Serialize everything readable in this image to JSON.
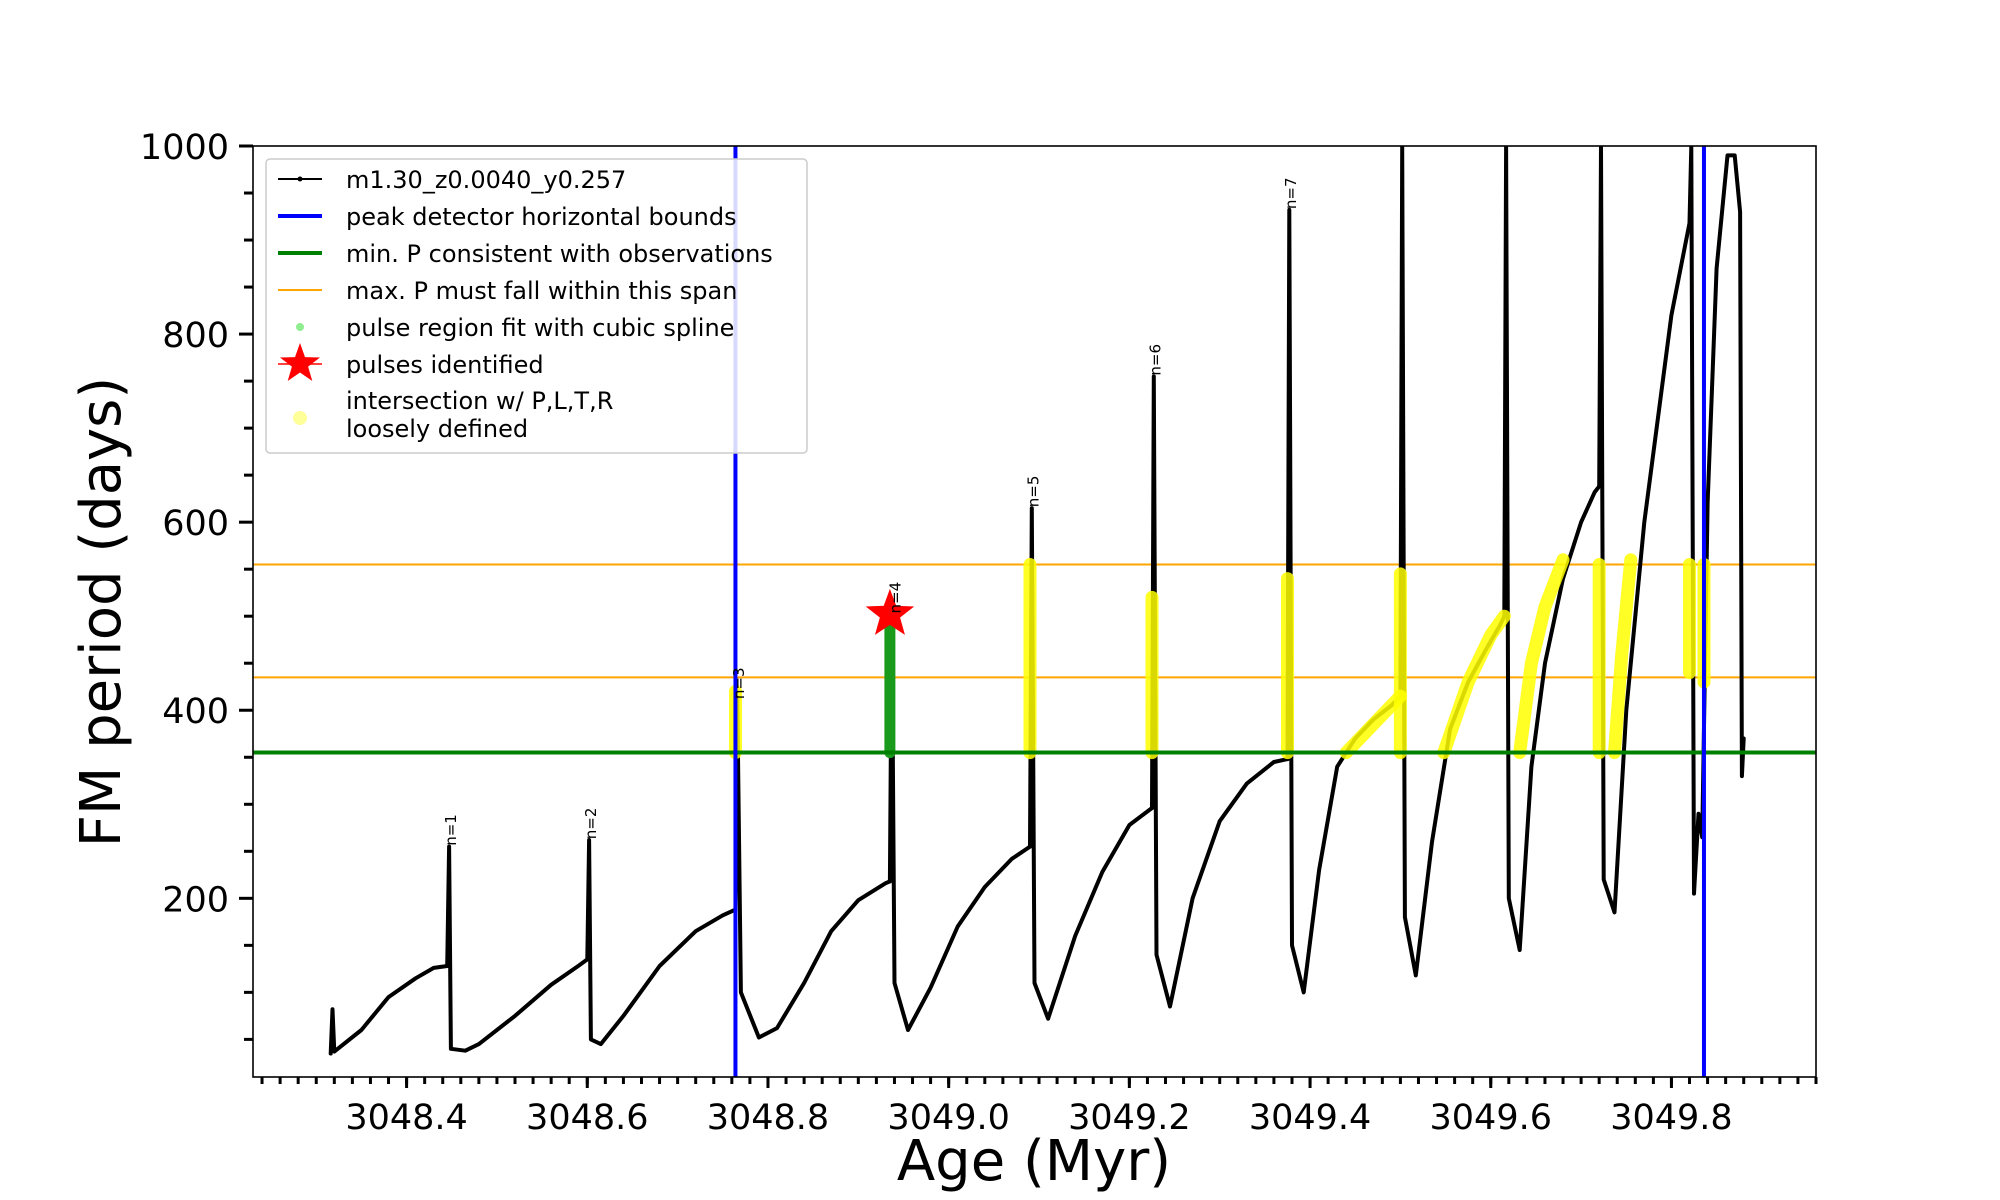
{
  "chart_data": {
    "type": "line",
    "xlabel": "Age (Myr)",
    "ylabel": "FM period (days)",
    "xlim": [
      3048.23,
      3049.96
    ],
    "ylim": [
      10,
      1000
    ],
    "x_ticks": [
      3048.4,
      3048.6,
      3048.8,
      3049.0,
      3049.2,
      3049.4,
      3049.6,
      3049.8
    ],
    "x_tick_labels": [
      "3048.4",
      "3048.6",
      "3048.8",
      "3049.0",
      "3049.2",
      "3049.4",
      "3049.6",
      "3049.8"
    ],
    "y_ticks": [
      200,
      400,
      600,
      800,
      1000
    ],
    "y_tick_labels": [
      "200",
      "400",
      "600",
      "800",
      "1000"
    ],
    "legend_position": "top-left",
    "legend": [
      {
        "key": "track",
        "label": "m1.30_z0.0040_y0.257",
        "color": "#000000"
      },
      {
        "key": "bounds",
        "label": "peak detector horizontal bounds",
        "color": "#0000ff"
      },
      {
        "key": "minp",
        "label": "min. P consistent with observations",
        "color": "#008000"
      },
      {
        "key": "maxp",
        "label": "max. P must fall within this span",
        "color": "#ffa500"
      },
      {
        "key": "spline",
        "label": "pulse region fit with cubic spline",
        "color": "#90ee90"
      },
      {
        "key": "pulses",
        "label": "pulses identified",
        "color": "#ff0000"
      },
      {
        "key": "intersect",
        "label": "intersection w/ P,L,T,R",
        "label2": "loosely defined",
        "color": "#ffff00"
      }
    ],
    "peak_detector_bounds_x": [
      3048.764,
      3049.836
    ],
    "min_period_line": 355,
    "max_period_span": [
      435,
      555
    ],
    "pulses_identified": [
      {
        "x": 3048.935,
        "y": 502
      }
    ],
    "track": {
      "name": "m1.30_z0.0040_y0.257",
      "segments": [
        {
          "x": [
            3048.316,
            3048.318,
            3048.32,
            3048.35,
            3048.38,
            3048.41,
            3048.43,
            3048.445
          ],
          "y": [
            35,
            82,
            37,
            60,
            95,
            115,
            126,
            128
          ]
        },
        {
          "x": [
            3048.445,
            3048.447,
            3048.449,
            3048.465,
            3048.48,
            3048.52,
            3048.56,
            3048.59,
            3048.6
          ],
          "y": [
            128,
            255,
            40,
            38,
            45,
            75,
            108,
            128,
            135
          ]
        },
        {
          "x": [
            3048.6,
            3048.602,
            3048.604,
            3048.615,
            3048.64,
            3048.68,
            3048.72,
            3048.75,
            3048.764
          ],
          "y": [
            135,
            262,
            50,
            45,
            75,
            128,
            165,
            182,
            188
          ]
        },
        {
          "x": [
            3048.764,
            3048.766,
            3048.77,
            3048.79,
            3048.81,
            3048.84,
            3048.87,
            3048.9,
            3048.93,
            3048.935
          ],
          "y": [
            188,
            412,
            100,
            52,
            62,
            110,
            165,
            198,
            216,
            218
          ]
        },
        {
          "x": [
            3048.935,
            3048.937,
            3048.94,
            3048.955,
            3048.98,
            3049.01,
            3049.04,
            3049.07,
            3049.09
          ],
          "y": [
            218,
            500,
            110,
            60,
            105,
            170,
            212,
            242,
            255
          ]
        },
        {
          "x": [
            3049.09,
            3049.092,
            3049.095,
            3049.11,
            3049.14,
            3049.17,
            3049.2,
            3049.225
          ],
          "y": [
            255,
            615,
            110,
            72,
            160,
            228,
            278,
            296
          ]
        },
        {
          "x": [
            3049.225,
            3049.227,
            3049.23,
            3049.245,
            3049.27,
            3049.3,
            3049.33,
            3049.36,
            3049.375
          ],
          "y": [
            296,
            755,
            140,
            85,
            200,
            282,
            322,
            345,
            348
          ]
        },
        {
          "x": [
            3049.375,
            3049.377,
            3049.38,
            3049.393,
            3049.41,
            3049.43,
            3049.45,
            3049.47,
            3049.49,
            3049.5
          ],
          "y": [
            348,
            932,
            150,
            100,
            230,
            340,
            370,
            390,
            405,
            415
          ]
        },
        {
          "x": [
            3049.5,
            3049.502,
            3049.505,
            3049.517,
            3049.535,
            3049.555,
            3049.575,
            3049.595,
            3049.61,
            3049.615
          ],
          "y": [
            415,
            1000,
            180,
            118,
            260,
            380,
            430,
            465,
            490,
            500
          ]
        },
        {
          "x": [
            3049.615,
            3049.617,
            3049.62,
            3049.632,
            3049.645,
            3049.66,
            3049.68,
            3049.7,
            3049.715,
            3049.72
          ],
          "y": [
            500,
            1000,
            200,
            145,
            340,
            450,
            540,
            600,
            632,
            638
          ]
        },
        {
          "x": [
            3049.72,
            3049.722,
            3049.725,
            3049.737,
            3049.75,
            3049.77,
            3049.8,
            3049.82
          ],
          "y": [
            638,
            1000,
            220,
            185,
            400,
            600,
            820,
            918
          ]
        },
        {
          "x": [
            3049.82,
            3049.822,
            3049.825,
            3049.83,
            3049.834,
            3049.84,
            3049.85,
            3049.862,
            3049.87,
            3049.876,
            3049.878,
            3049.88
          ],
          "y": [
            918,
            1000,
            205,
            290,
            265,
            620,
            870,
            990,
            990,
            930,
            330,
            370
          ]
        }
      ]
    },
    "cubic_spline_fit": [
      {
        "x": [
          3048.935,
          3048.935
        ],
        "y": [
          355,
          500
        ]
      }
    ],
    "intersections": [
      {
        "x": [
          3048.764,
          3048.764
        ],
        "y": [
          355,
          420
        ]
      },
      {
        "x": [
          3049.09,
          3049.09
        ],
        "y": [
          355,
          555
        ]
      },
      {
        "x": [
          3049.225,
          3049.225
        ],
        "y": [
          355,
          520
        ]
      },
      {
        "x": [
          3049.375,
          3049.375
        ],
        "y": [
          355,
          540
        ]
      },
      {
        "x": [
          3049.44,
          3049.47,
          3049.5
        ],
        "y": [
          355,
          385,
          415
        ]
      },
      {
        "x": [
          3049.5,
          3049.5
        ],
        "y": [
          355,
          545
        ]
      },
      {
        "x": [
          3049.548,
          3049.575,
          3049.6,
          3049.615
        ],
        "y": [
          355,
          430,
          480,
          500
        ]
      },
      {
        "x": [
          3049.632,
          3049.645,
          3049.66,
          3049.68
        ],
        "y": [
          355,
          450,
          510,
          560
        ]
      },
      {
        "x": [
          3049.72,
          3049.72
        ],
        "y": [
          355,
          555
        ]
      },
      {
        "x": [
          3049.737,
          3049.745,
          3049.755
        ],
        "y": [
          355,
          460,
          560
        ]
      },
      {
        "x": [
          3049.82,
          3049.82
        ],
        "y": [
          440,
          555
        ]
      },
      {
        "x": [
          3049.836,
          3049.836
        ],
        "y": [
          430,
          555
        ]
      }
    ],
    "pulse_labels": [
      {
        "text": "n=1",
        "x": 3048.448,
        "y": 258
      },
      {
        "text": "n=2",
        "x": 3048.603,
        "y": 265
      },
      {
        "text": "n=3",
        "x": 3048.767,
        "y": 414
      },
      {
        "text": "n=4",
        "x": 3048.94,
        "y": 505
      },
      {
        "text": "n=5",
        "x": 3049.093,
        "y": 618
      },
      {
        "text": "n=6",
        "x": 3049.228,
        "y": 758
      },
      {
        "text": "n=7",
        "x": 3049.378,
        "y": 935
      }
    ]
  }
}
